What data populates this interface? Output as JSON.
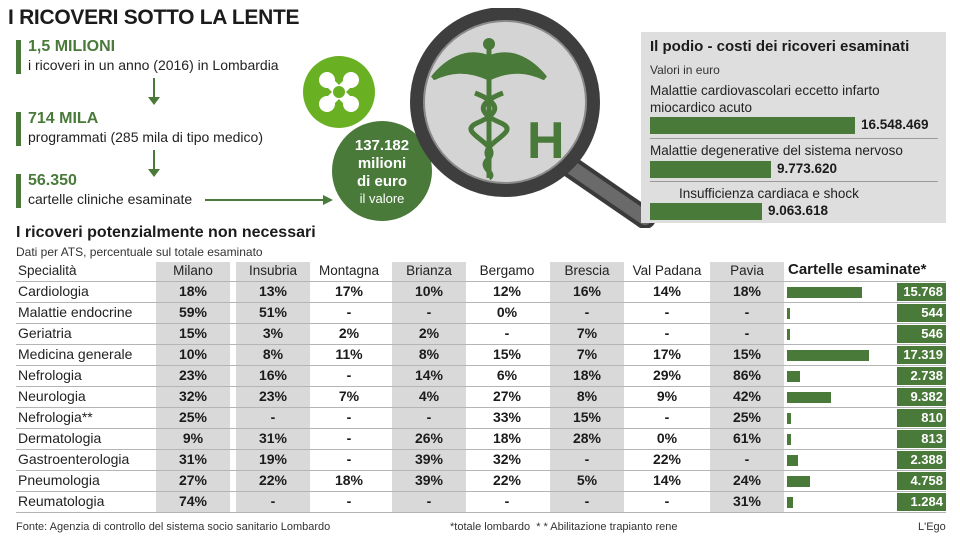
{
  "title": "I RICOVERI SOTTO LA LENTE",
  "stats": [
    {
      "big": "1,5 MILIONI",
      "sub": "i ricoveri in un anno (2016) in Lombardia"
    },
    {
      "big": "714 MILA",
      "sub": "programmati (285 mila di tipo medico)"
    },
    {
      "big": "56.350",
      "sub": "cartelle cliniche esaminate"
    }
  ],
  "value_circle": {
    "amount": "137.182",
    "unit": "milioni",
    "unit2": "di euro",
    "caption": "il valore"
  },
  "magnifier_letter": "H",
  "podio": {
    "title": "Il podio - costi dei ricoveri esaminati",
    "subtitle": "Valori in euro",
    "items": [
      {
        "label": "Malattie cardiovascolari eccetto infarto miocardico acuto",
        "value": "16.548.469",
        "amount": 16548469
      },
      {
        "label": "Malattie degenerative del sistema nervoso",
        "value": "9.773.620",
        "amount": 9773620
      },
      {
        "label": "Insufficienza cardiaca e shock",
        "value": "9.063.618",
        "amount": 9063618
      }
    ]
  },
  "table_title": "I ricoveri potenzialmente non necessari",
  "table_subtitle": "Dati per ATS, percentuale sul totale esaminato",
  "spec_header": "Specialità",
  "cartelle_header": "Cartelle esaminate*",
  "footer": {
    "source": "Fonte: Agenzia di controllo del sistema socio sanitario Lombardo",
    "notes": "*totale lombardo  * * Abilitazione trapianto rene",
    "brand": "L'Ego"
  },
  "colors": {
    "accent": "#4a7a3a",
    "shade": "#d9d9d9",
    "logo": "#6ab023"
  },
  "chart_data": {
    "type": "table",
    "columns": [
      "Milano",
      "Insubria",
      "Montagna",
      "Brianza",
      "Bergamo",
      "Brescia",
      "Val Padana",
      "Pavia"
    ],
    "rows": [
      {
        "name": "Cardiologia",
        "values": [
          "18%",
          "13%",
          "17%",
          "10%",
          "12%",
          "16%",
          "14%",
          "18%"
        ],
        "cartelle": "15.768",
        "cartelle_num": 15768
      },
      {
        "name": "Malattie endocrine",
        "values": [
          "59%",
          "51%",
          "-",
          "-",
          "0%",
          "-",
          "-",
          "-"
        ],
        "cartelle": "544",
        "cartelle_num": 544
      },
      {
        "name": "Geriatria",
        "values": [
          "15%",
          "3%",
          "2%",
          "2%",
          "-",
          "7%",
          "-",
          "-"
        ],
        "cartelle": "546",
        "cartelle_num": 546
      },
      {
        "name": "Medicina generale",
        "values": [
          "10%",
          "8%",
          "11%",
          "8%",
          "15%",
          "7%",
          "17%",
          "15%"
        ],
        "cartelle": "17.319",
        "cartelle_num": 17319
      },
      {
        "name": "Nefrologia",
        "values": [
          "23%",
          "16%",
          "-",
          "14%",
          "6%",
          "18%",
          "29%",
          "86%"
        ],
        "cartelle": "2.738",
        "cartelle_num": 2738
      },
      {
        "name": "Neurologia",
        "values": [
          "32%",
          "23%",
          "7%",
          "4%",
          "27%",
          "8%",
          "9%",
          "42%"
        ],
        "cartelle": "9.382",
        "cartelle_num": 9382
      },
      {
        "name": "Nefrologia**",
        "values": [
          "25%",
          "-",
          "-",
          "-",
          "33%",
          "15%",
          "-",
          "25%"
        ],
        "cartelle": "810",
        "cartelle_num": 810
      },
      {
        "name": "Dermatologia",
        "values": [
          "9%",
          "31%",
          "-",
          "26%",
          "18%",
          "28%",
          "0%",
          "61%"
        ],
        "cartelle": "813",
        "cartelle_num": 813
      },
      {
        "name": "Gastroenterologia",
        "values": [
          "31%",
          "19%",
          "-",
          "39%",
          "32%",
          "-",
          "22%",
          "-"
        ],
        "cartelle": "2.388",
        "cartelle_num": 2388
      },
      {
        "name": "Pneumologia",
        "values": [
          "27%",
          "22%",
          "18%",
          "39%",
          "22%",
          "5%",
          "14%",
          "24%"
        ],
        "cartelle": "4.758",
        "cartelle_num": 4758
      },
      {
        "name": "Reumatologia",
        "values": [
          "74%",
          "-",
          "-",
          "-",
          "-",
          "-",
          "-",
          "31%"
        ],
        "cartelle": "1.284",
        "cartelle_num": 1284
      }
    ]
  }
}
